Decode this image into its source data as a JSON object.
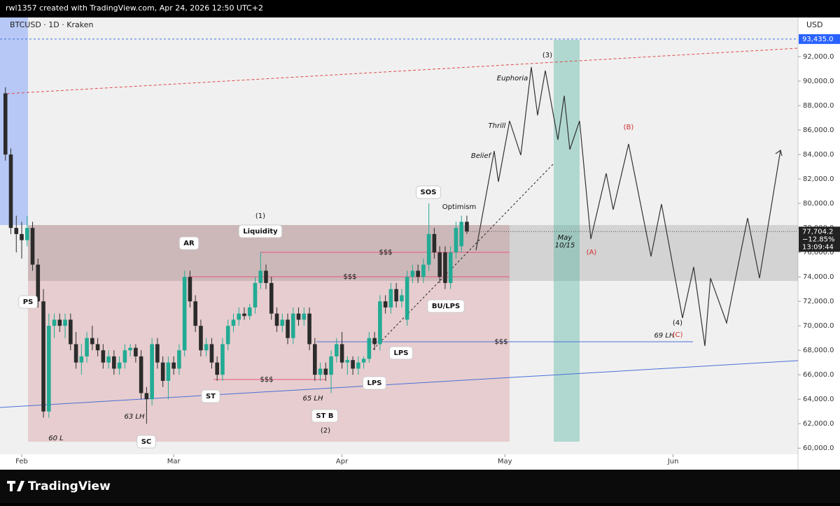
{
  "header": {
    "credit": "rwl1357 created with TradingView.com, Apr 24, 2026 12:50 UTC+2",
    "symbol": "BTCUSD · 1D · Kraken",
    "currency": "USD"
  },
  "footer": {
    "brand": "TradingView"
  },
  "chart_data": {
    "type": "candlestick",
    "xlim": [
      28,
      175
    ],
    "xticks": [
      {
        "value": 32,
        "label": "Feb"
      },
      {
        "value": 60,
        "label": "Mar"
      },
      {
        "value": 91,
        "label": "Apr"
      },
      {
        "value": 121,
        "label": "May"
      },
      {
        "value": 152,
        "label": "Jun"
      }
    ],
    "ylim": [
      59500,
      95200
    ],
    "yticks": [
      {
        "value": 60000,
        "label": "60,000.0"
      },
      {
        "value": 62000,
        "label": "62,000.0"
      },
      {
        "value": 64000,
        "label": "64,000.0"
      },
      {
        "value": 66000,
        "label": "66,000.0"
      },
      {
        "value": 68000,
        "label": "68,000.0"
      },
      {
        "value": 70000,
        "label": "70,000.0"
      },
      {
        "value": 72000,
        "label": "72,000.0"
      },
      {
        "value": 74000,
        "label": "74,000.0"
      },
      {
        "value": 76000,
        "label": "76,000.0"
      },
      {
        "value": 78000,
        "label": "78,000.0"
      },
      {
        "value": 80000,
        "label": "80,000.0"
      },
      {
        "value": 82000,
        "label": "82,000.0"
      },
      {
        "value": 84000,
        "label": "84,000.0"
      },
      {
        "value": 86000,
        "label": "86,000.0"
      },
      {
        "value": 88000,
        "label": "88,000.0"
      },
      {
        "value": 90000,
        "label": "90,000.0"
      },
      {
        "value": 92000,
        "label": "92,000.0"
      }
    ],
    "up_color": "#22ab94",
    "down_color": "#2b2b2b",
    "x": [
      29,
      30,
      31,
      32,
      33,
      34,
      35,
      36,
      37,
      38,
      39,
      40,
      41,
      42,
      43,
      44,
      45,
      46,
      47,
      48,
      49,
      50,
      51,
      52,
      53,
      54,
      55,
      56,
      57,
      58,
      59,
      60,
      61,
      62,
      63,
      64,
      65,
      66,
      67,
      68,
      69,
      70,
      71,
      72,
      73,
      74,
      75,
      76,
      77,
      78,
      79,
      80,
      81,
      82,
      83,
      84,
      85,
      86,
      87,
      88,
      89,
      90,
      91,
      92,
      93,
      94,
      95,
      96,
      97,
      98,
      99,
      100,
      101,
      102,
      103,
      104,
      105,
      106,
      107,
      108,
      109,
      110,
      111,
      112,
      113,
      114
    ],
    "open": [
      89000,
      84000,
      78000,
      77500,
      77000,
      78000,
      75000,
      72000,
      63000,
      70000,
      70500,
      70000,
      70500,
      68500,
      67000,
      67500,
      69000,
      68500,
      68000,
      67000,
      67500,
      66500,
      67000,
      68000,
      68200,
      67500,
      64500,
      64000,
      68500,
      67000,
      65500,
      67000,
      66500,
      68000,
      74000,
      72000,
      70000,
      68000,
      68500,
      67000,
      66000,
      68500,
      70000,
      70500,
      71000,
      70800,
      71500,
      73500,
      74500,
      73500,
      71000,
      70000,
      70500,
      69000,
      71000,
      70500,
      71000,
      68500,
      66000,
      66500,
      66000,
      67500,
      68500,
      67000,
      67200,
      66500,
      67000,
      67300,
      69000,
      68500,
      72000,
      71500,
      73000,
      72000,
      70500,
      74000,
      74500,
      74000,
      75000,
      77500,
      76000,
      76000,
      73500,
      76000,
      76500,
      78500
    ],
    "high": [
      89500,
      84500,
      79000,
      78500,
      79000,
      78500,
      75500,
      73000,
      71000,
      71000,
      71000,
      71000,
      71000,
      69500,
      68500,
      69500,
      70000,
      69000,
      68500,
      68000,
      68000,
      67500,
      68500,
      68500,
      68500,
      68000,
      65000,
      69000,
      69000,
      67500,
      67500,
      67500,
      68500,
      74500,
      74500,
      72500,
      70500,
      69000,
      69000,
      67500,
      69000,
      70500,
      71000,
      71500,
      71500,
      71800,
      74000,
      76000,
      75000,
      74000,
      71500,
      71000,
      71000,
      71500,
      71500,
      71500,
      71500,
      69000,
      67000,
      67000,
      68000,
      69000,
      69500,
      67500,
      67500,
      67500,
      67500,
      69500,
      69500,
      72500,
      72500,
      73500,
      73500,
      73000,
      74500,
      75000,
      75000,
      75500,
      80000,
      78000,
      76500,
      76500,
      76500,
      78500,
      79000,
      79000
    ],
    "low": [
      83500,
      77500,
      76000,
      75500,
      76500,
      74500,
      71500,
      62500,
      62500,
      69000,
      69500,
      69000,
      68000,
      66500,
      66000,
      67000,
      68000,
      67500,
      66500,
      66500,
      66000,
      66000,
      66500,
      67500,
      67000,
      64000,
      62000,
      63500,
      66500,
      65000,
      64000,
      66000,
      66000,
      67500,
      71500,
      69500,
      67500,
      67500,
      66500,
      65500,
      65500,
      68000,
      69500,
      70000,
      70500,
      70500,
      71000,
      73000,
      73000,
      70500,
      69500,
      69500,
      68500,
      68500,
      70000,
      70000,
      68000,
      65500,
      65500,
      65500,
      64500,
      67000,
      66500,
      66000,
      66000,
      66000,
      66500,
      67000,
      68000,
      68000,
      71000,
      71000,
      71500,
      71500,
      70000,
      73500,
      73500,
      73500,
      74500,
      75500,
      73500,
      73000,
      73000,
      75500,
      76000,
      77500
    ],
    "close": [
      84000,
      78000,
      77500,
      77000,
      78000,
      75000,
      72000,
      63000,
      70000,
      70500,
      70000,
      70500,
      68500,
      67000,
      67500,
      69000,
      68500,
      68000,
      67000,
      67500,
      66500,
      67000,
      68000,
      68200,
      67500,
      64500,
      64000,
      68500,
      67000,
      65500,
      67000,
      66500,
      68000,
      74000,
      72000,
      70000,
      68000,
      68500,
      67000,
      66000,
      68500,
      70000,
      70500,
      71000,
      70800,
      71500,
      73500,
      74500,
      73500,
      71000,
      70000,
      70500,
      69000,
      71000,
      70500,
      71000,
      68500,
      66000,
      66500,
      66000,
      67500,
      68500,
      67000,
      67200,
      66500,
      67000,
      67300,
      69000,
      68500,
      72000,
      71500,
      73000,
      72000,
      72500,
      74000,
      74500,
      74000,
      75000,
      77500,
      76000,
      74000,
      73500,
      76000,
      78000,
      78500,
      77704.2
    ],
    "reference_level": {
      "value": 93435,
      "label": "93,435.0"
    },
    "last_price": {
      "value": 77704.2,
      "label": "77,704.2"
    },
    "change": "−12.85%",
    "countdown": "13:09:44",
    "annotations": [
      "PS",
      "60 L",
      "63 LH",
      "SC",
      "ST",
      "AR",
      "(1)",
      "Liquidity",
      "$$$",
      "$$$",
      "$$$",
      "65 LH",
      "ST B",
      "(2)",
      "LPS",
      "LPS",
      "BU/LPS",
      "SOS",
      "Optimism",
      "Belief",
      "Thrill",
      "Euphoria",
      "(3)",
      "May",
      "10/15",
      "(A)",
      "(B)",
      "(4)",
      "69 LH",
      "(C)",
      "$$$"
    ]
  }
}
